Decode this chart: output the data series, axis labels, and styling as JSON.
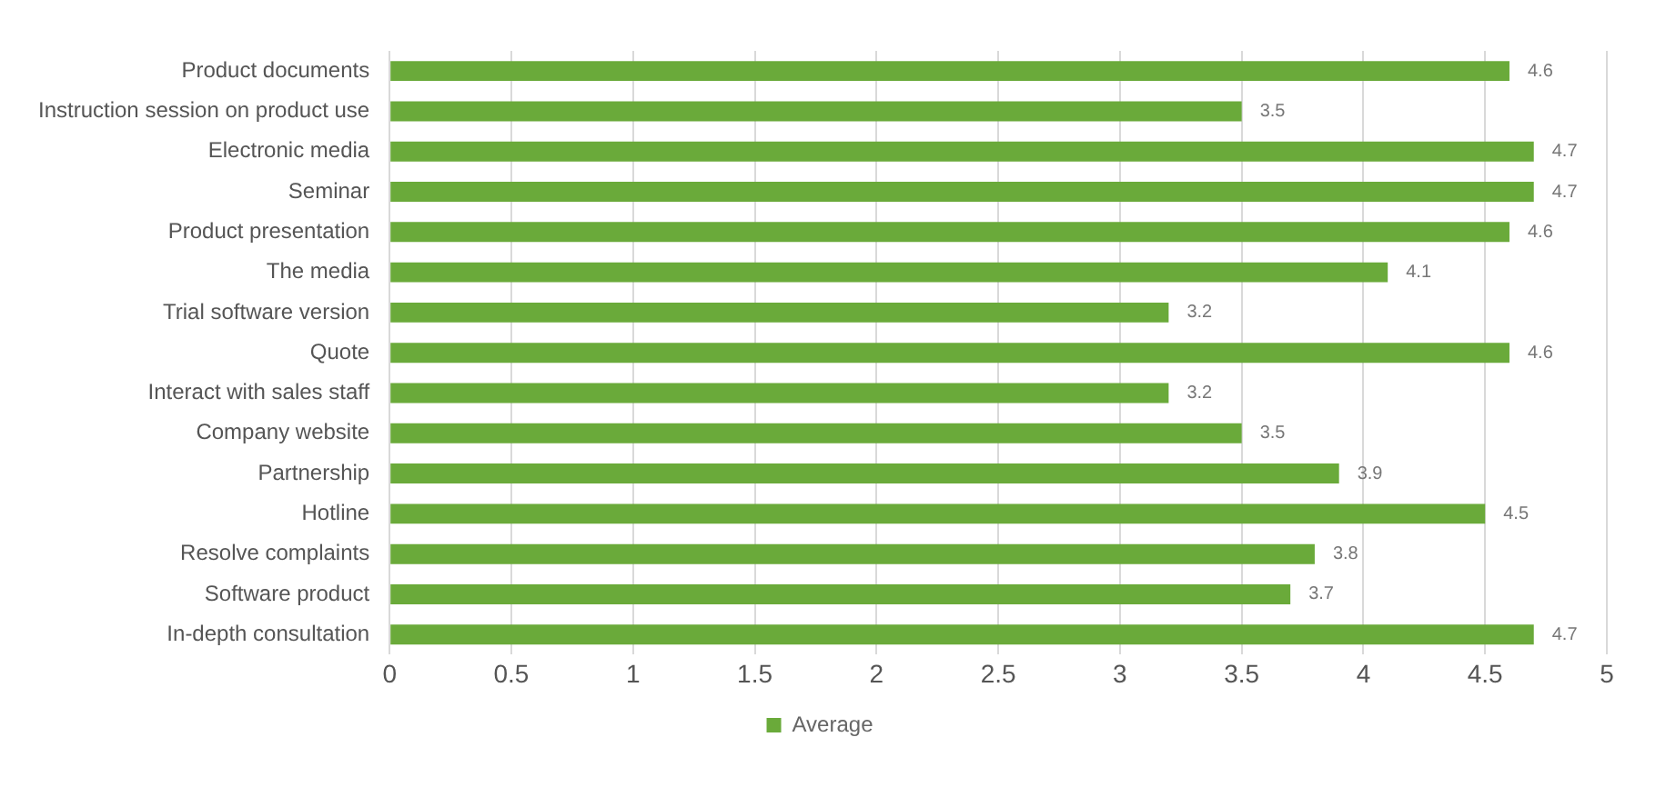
{
  "chart_data": {
    "type": "bar",
    "orientation": "horizontal",
    "categories": [
      "Product documents",
      "Instruction session on product use",
      "Electronic media",
      "Seminar",
      "Product presentation",
      "The media",
      "Trial software version",
      "Quote",
      "Interact with sales staff",
      "Company website",
      "Partnership",
      "Hotline",
      "Resolve complaints",
      "Software product",
      "In-depth consultation"
    ],
    "series": [
      {
        "name": "Average",
        "color": "#6aaa3a",
        "values": [
          4.6,
          3.5,
          4.7,
          4.7,
          4.6,
          4.1,
          3.2,
          4.6,
          3.2,
          3.5,
          3.9,
          4.5,
          3.8,
          3.7,
          4.7
        ]
      }
    ],
    "xlim": [
      0,
      5
    ],
    "xticks": [
      0,
      0.5,
      1,
      1.5,
      2,
      2.5,
      3,
      3.5,
      4,
      4.5,
      5
    ],
    "grid": "x",
    "legend": "bottom",
    "data_labels": true
  }
}
